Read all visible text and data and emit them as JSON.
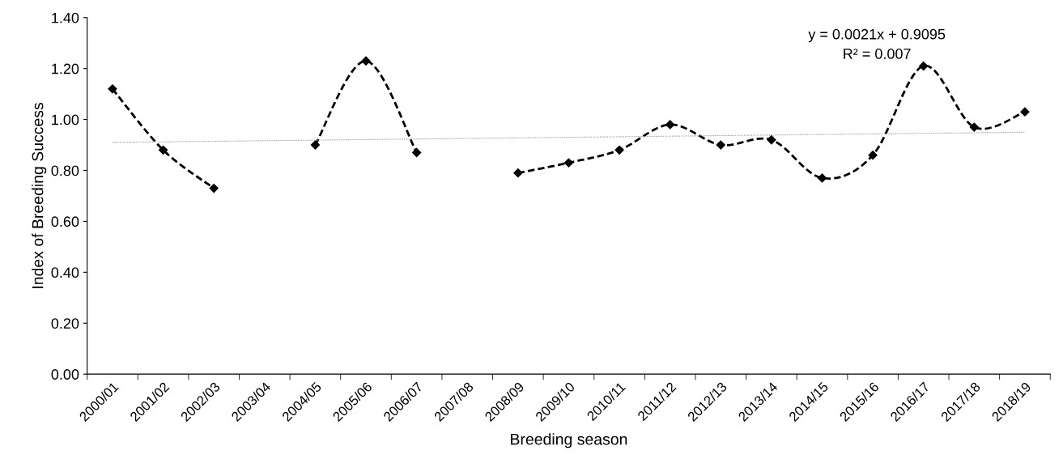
{
  "chart_data": {
    "type": "line",
    "xlabel": "Breeding season",
    "ylabel": "Index of Breeding Success",
    "categories": [
      "2000/01",
      "2001/02",
      "2002/03",
      "2003/04",
      "2004/05",
      "2005/06",
      "2006/07",
      "2007/08",
      "2008/09",
      "2009/10",
      "2010/11",
      "2011/12",
      "2012/13",
      "2013/14",
      "2014/15",
      "2015/16",
      "2016/17",
      "2017/18",
      "2018/19"
    ],
    "series": [
      {
        "color": "#000000",
        "marker": "diamond",
        "line_style": "dashed",
        "values": [
          1.12,
          0.88,
          0.73,
          null,
          0.9,
          1.23,
          0.87,
          null,
          0.79,
          0.83,
          0.88,
          0.98,
          0.9,
          0.92,
          0.77,
          0.86,
          1.21,
          0.97,
          1.03
        ]
      },
      {
        "type": "line",
        "color": "#999999",
        "marker": "none",
        "line_style": "dotted",
        "x": [
          "2000/01",
          "2018/19"
        ],
        "values": [
          0.91,
          0.95
        ]
      }
    ],
    "ylim": [
      0,
      1.4
    ],
    "yticks": [
      {
        "value": 0,
        "label": "0.00"
      },
      {
        "value": 0.2,
        "label": "0.20"
      },
      {
        "value": 0.4,
        "label": "0.40"
      },
      {
        "value": 0.6,
        "label": "0.60"
      },
      {
        "value": 0.8,
        "label": "0.80"
      },
      {
        "value": 1.0,
        "label": "1.00"
      },
      {
        "value": 1.2,
        "label": "1.20"
      },
      {
        "value": 1.4,
        "label": "1.40"
      }
    ],
    "grid": false,
    "legend": false,
    "annotations": [
      "y = 0.0021x + 0.9095",
      "R² = 0.007"
    ]
  }
}
